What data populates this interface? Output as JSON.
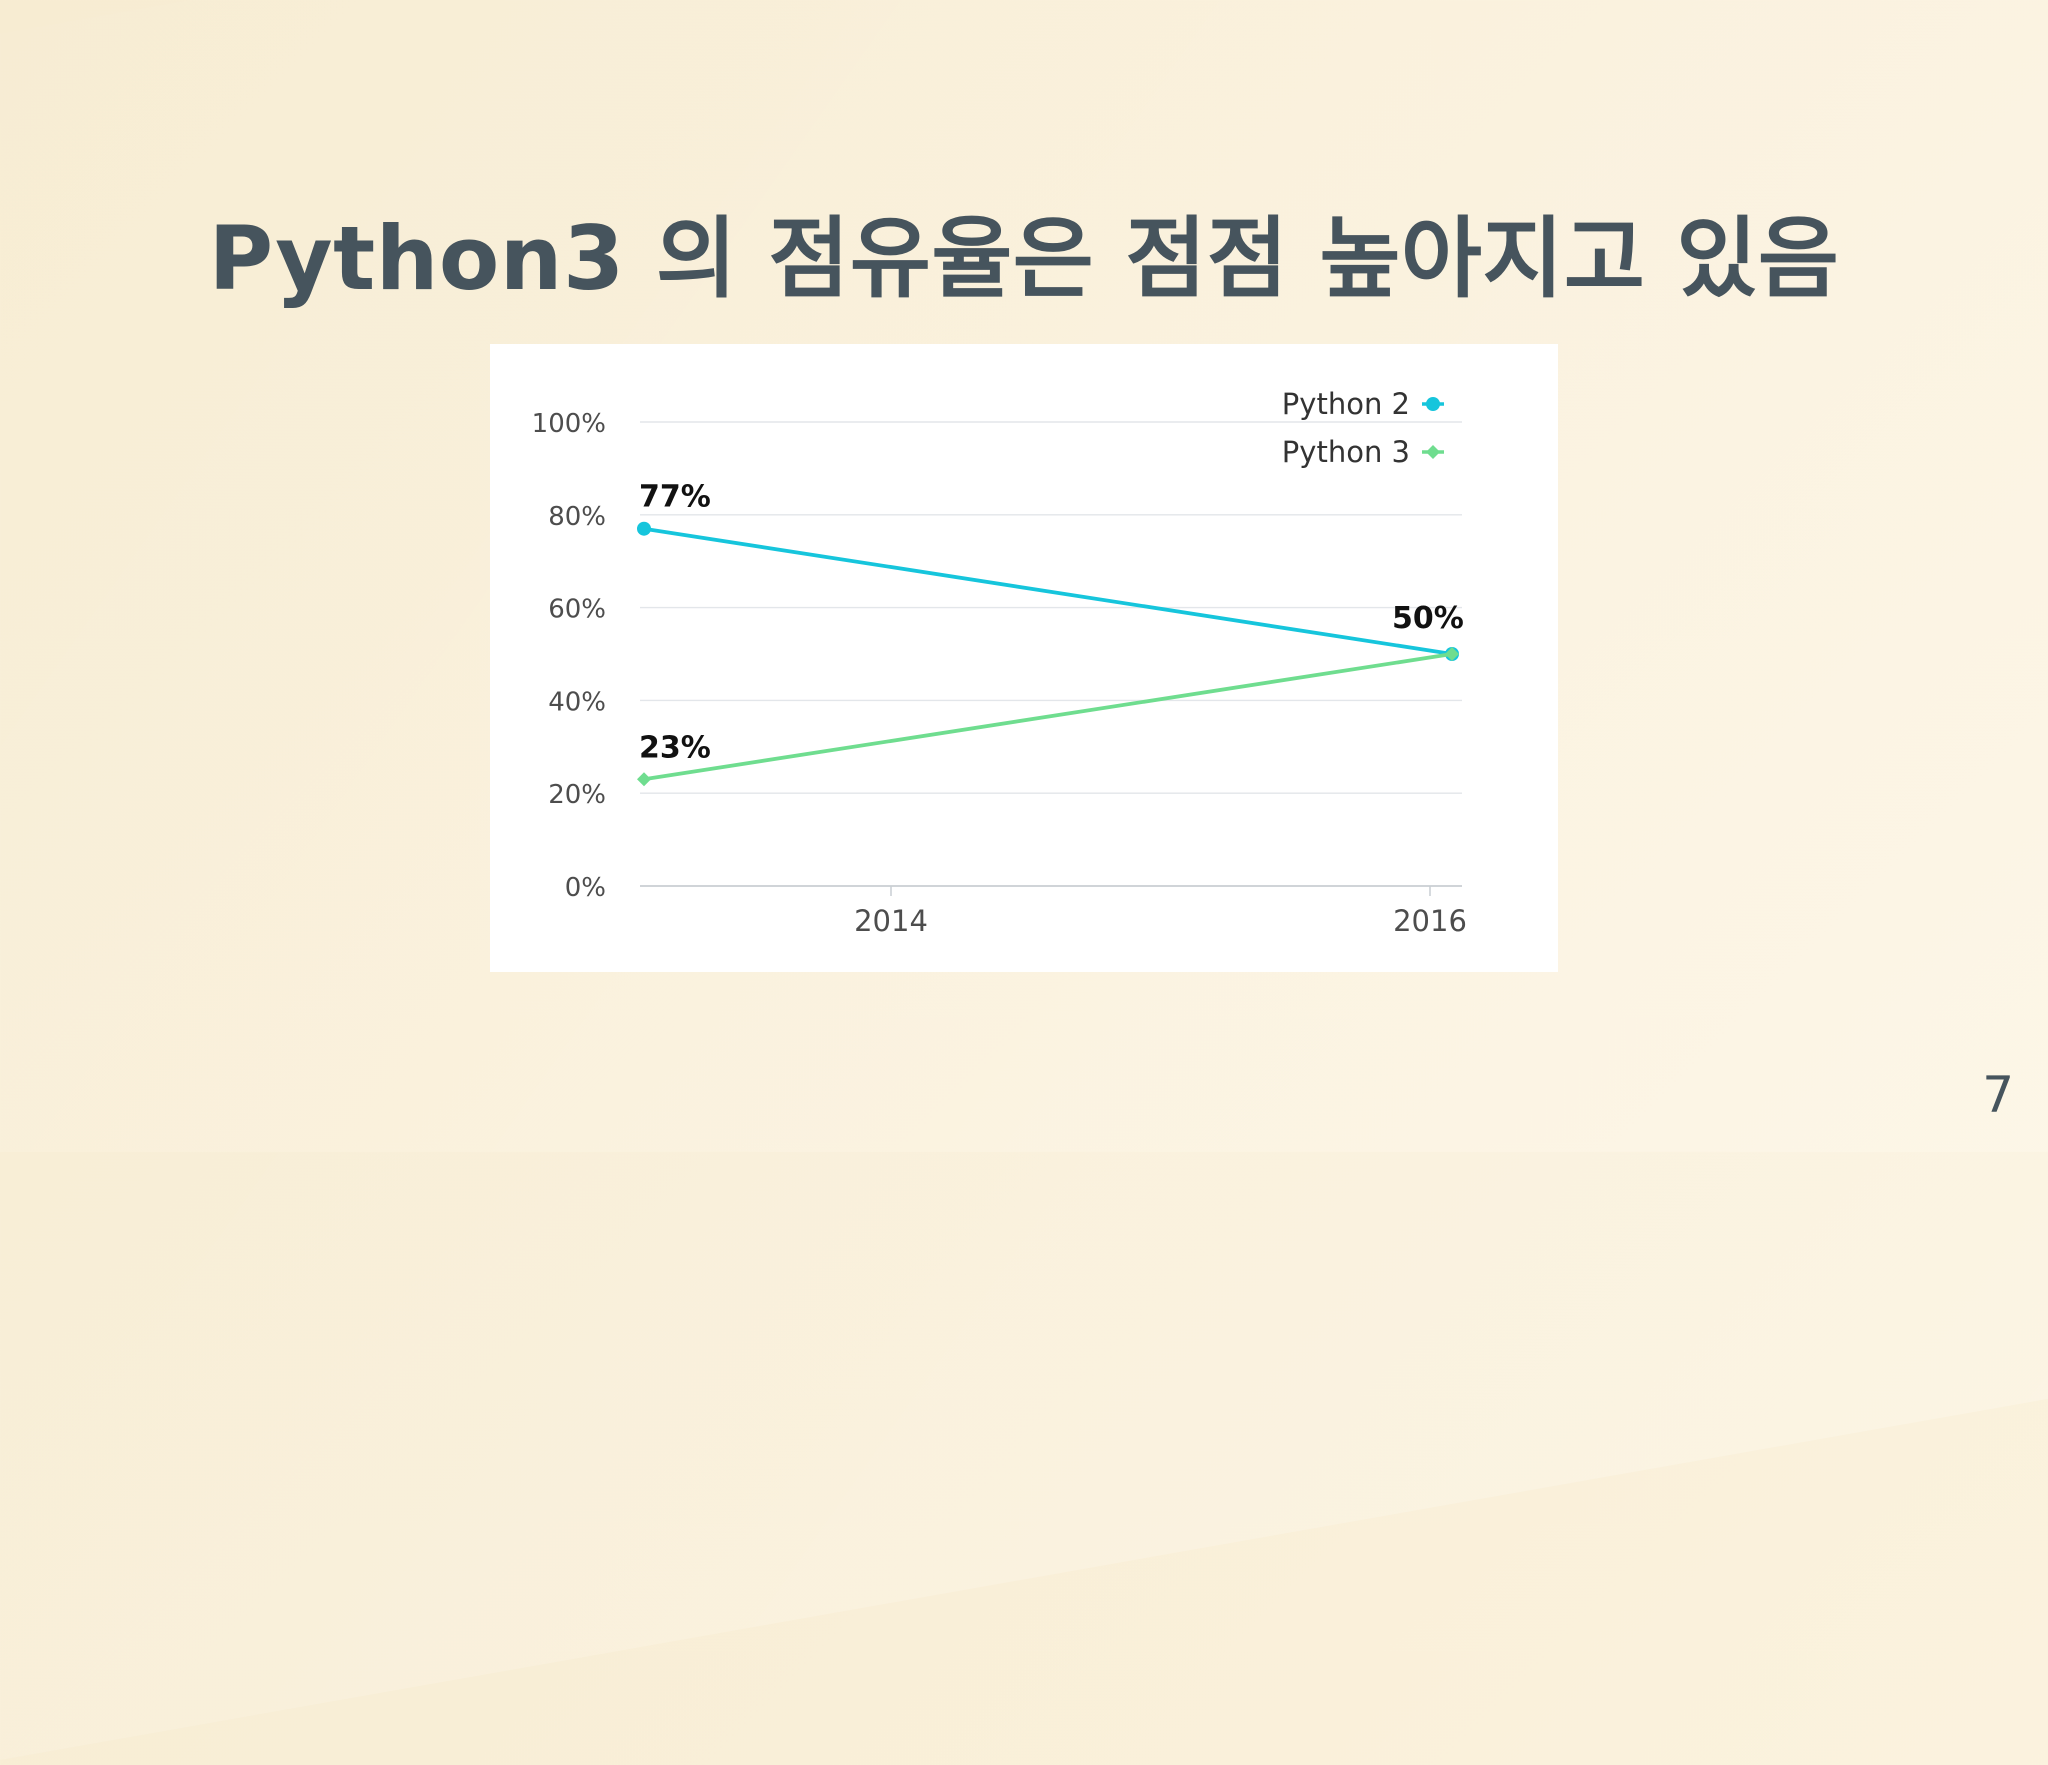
{
  "slide": {
    "title": "Python3 의 점유율은 점점 높아지고 있음",
    "page_number": "7"
  },
  "chart_data": {
    "type": "line",
    "x": [
      "2014",
      "2016"
    ],
    "series": [
      {
        "name": "Python 2",
        "values": [
          77,
          50
        ],
        "color": "#16c5dc",
        "marker": "circle"
      },
      {
        "name": "Python 3",
        "values": [
          23,
          50
        ],
        "color": "#6fdd8f",
        "marker": "diamond"
      }
    ],
    "y_ticks": [
      "0%",
      "20%",
      "40%",
      "60%",
      "80%",
      "100%"
    ],
    "ylim": [
      0,
      100
    ],
    "x_ticks": [
      "2014",
      "2016"
    ],
    "data_labels": [
      {
        "series": 0,
        "point": 0,
        "text": "77%"
      },
      {
        "series": 1,
        "point": 0,
        "text": "23%"
      },
      {
        "series": 0,
        "point": 1,
        "text": "50%"
      }
    ],
    "grid": true,
    "legend_position": "top-right"
  }
}
